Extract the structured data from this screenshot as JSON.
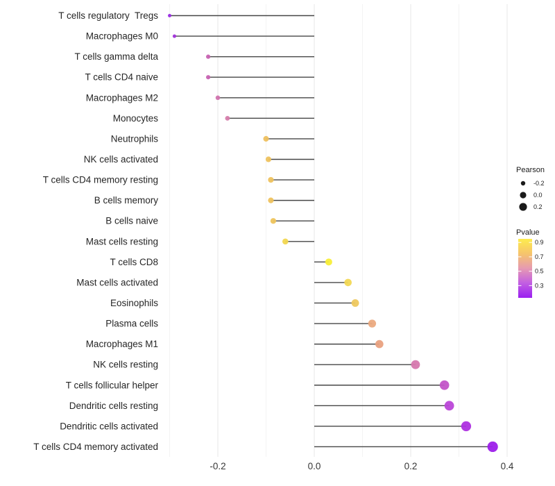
{
  "chart_data": {
    "type": "scatter",
    "variant": "lollipop",
    "title": "",
    "xlabel": "",
    "ylabel": "",
    "xlim": [
      -0.33,
      0.43
    ],
    "x_ticks": [
      -0.2,
      0.0,
      0.2,
      0.4
    ],
    "x_tick_labels": [
      "-0.2",
      "0.0",
      "0.2",
      "0.4"
    ],
    "gridlines_x": [
      -0.3,
      -0.2,
      -0.1,
      0.0,
      0.1,
      0.2,
      0.3,
      0.4
    ],
    "baseline_x": 0.0,
    "grid": true,
    "legend_position": "right",
    "categories": [
      "T cells regulatory  Tregs",
      "Macrophages M0",
      "T cells gamma delta",
      "T cells CD4 naive",
      "Macrophages M2",
      "Monocytes",
      "Neutrophils",
      "NK cells activated",
      "T cells CD4 memory resting",
      "B cells memory",
      "B cells naive",
      "Mast cells resting",
      "T cells CD8",
      "Mast cells activated",
      "Eosinophils",
      "Plasma cells",
      "Macrophages M1",
      "NK cells resting",
      "T cells follicular helper",
      "Dendritic cells resting",
      "Dendritic cells activated",
      "T cells CD4 memory activated"
    ],
    "series": [
      {
        "name": "Pearson",
        "values": [
          -0.3,
          -0.29,
          -0.22,
          -0.22,
          -0.2,
          -0.18,
          -0.1,
          -0.095,
          -0.09,
          -0.09,
          -0.085,
          -0.06,
          0.03,
          0.07,
          0.085,
          0.12,
          0.135,
          0.21,
          0.27,
          0.28,
          0.315,
          0.37
        ]
      },
      {
        "name": "Pvalue (estimated from color)",
        "values": [
          0.15,
          0.18,
          0.38,
          0.38,
          0.42,
          0.44,
          0.78,
          0.78,
          0.78,
          0.78,
          0.79,
          0.85,
          0.95,
          0.85,
          0.8,
          0.67,
          0.65,
          0.44,
          0.34,
          0.3,
          0.24,
          0.15
        ]
      }
    ],
    "point_colors": [
      "#9a2be4",
      "#a133d9",
      "#c763b2",
      "#c763b2",
      "#d173ae",
      "#d57dab",
      "#eec05f",
      "#eec25e",
      "#eec25e",
      "#eec25e",
      "#eec45c",
      "#f2d750",
      "#f8ee38",
      "#f2d854",
      "#eec85e",
      "#ebaa80",
      "#e9a17f",
      "#d678ae",
      "#c355c8",
      "#bb46d8",
      "#ae32e0",
      "#9d1fea"
    ]
  },
  "legend": {
    "pearson": {
      "title": "Pearson",
      "dot_color": "#1a1a1a",
      "items": [
        {
          "label": "-0.2",
          "r": 3.2
        },
        {
          "label": "0.0",
          "r": 4.6
        },
        {
          "label": "0.2",
          "r": 5.6
        }
      ]
    },
    "pvalue": {
      "title": "Pvalue",
      "tick_labels": [
        "0.9",
        "0.7",
        "0.5",
        "0.3"
      ],
      "tick_values": [
        0.9,
        0.7,
        0.5,
        0.3
      ],
      "bar_range": [
        0.95,
        0.13
      ],
      "gradient": [
        "#fdec4d",
        "#f6c46c",
        "#e69ab2",
        "#c25ee2",
        "#9a1ff0"
      ]
    }
  },
  "colors": {
    "stem": "#464646",
    "gridline_major": "#e7e7e7",
    "gridline_minor": "#f3f3f3",
    "background": "#ffffff"
  }
}
